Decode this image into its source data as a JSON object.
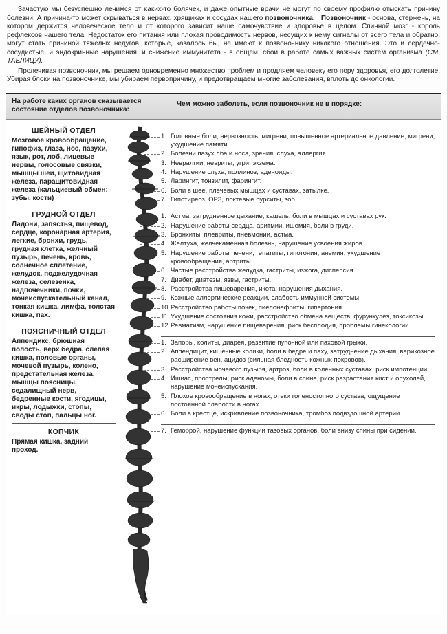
{
  "intro": {
    "pozvonochnik_word": "позвоночника.",
    "pozvonochnik_head": "Позвоночник",
    "p1a": "Зачастую мы безуспешно лечимся от каких-то болячек, и даже опытные врачи не могут по своему профилю отыскать причину болезни. А причина-то может скрываться в нервах, хрящиках и сосудах нашего ",
    "p1b": " - основа, стержень, на котором держится человеческое тело и от которого зависит наше самочувствие и здоровье в целом. Спинной мозг - король рефлексов нашего тела. Недостаток его питания или плохая проводимость нервов, несущих к нему сигналы от всего тела и обратно, могут стать причиной тяжелых недугов, которые, казалось бы, не имеют к позвоночнику никакого отношения. Это и сердечно-сосудистые, и эндокринные нарушения, и снижение иммунитета - в общем, сбои в работе самых важных систем организма ",
    "see_table": "(СМ. ТАБЛИЦУ).",
    "p2": "Пролечивая позвоночник, мы решаем одновременно множество проблем и продляем человеку его пору здоровья, его долголетие. Убирая блоки на позвоночнике, мы убираем первопричину, и предотвращаем многие заболевания, вплоть до онкологии."
  },
  "headers": {
    "left": "На работе каких органов сказывается состояние отделов позвоночника:",
    "right": "Чем можно заболеть, если позвоночник не в порядке:"
  },
  "sections": [
    {
      "title": "ШЕЙНЫЙ ОТДЕЛ",
      "left": "Мозговое кровообращение, гипофиз, глаза, нос, пазухи, язык, рот, лоб, лицевые нервы, голосовые связки, мышцы шеи, щитовидная железа, паращитовидная железа (кальциевый обмен: зубы, кости)",
      "right": [
        "Головные боли, нервозность, мигрени, повышенное артериальное давление, мигрени, ухудшение памяти.",
        "Болезни пазух лба и носа, зрения, слуха, аллергия.",
        "Невралгии, невриты, угри, экзема.",
        "Нарушение слуха, поллиноз, аденоиды.",
        "Ларингит, тонзилит, фарингит.",
        "Боли в шее, плечевых мышцах и суставах, затылке.",
        "Гипотиреоз, ОРЗ, локтевые бурситы, зоб."
      ]
    },
    {
      "title": "ГРУДНОЙ ОТДЕЛ",
      "left": "Ладони, запястья, пищевод, сердце, коронарная артерия, легкие, бронхи, грудь, грудная клетка, желчный пузырь, печень, кровь, солнечное сплетение, желудок, поджелудочная железа, селезенка, надпочечники, почки, мочеиспускательный канал, тонкая кишка, лимфа, толстая кишка, пах.",
      "right": [
        "Астма, затрудненное дыхание, кашель, боли в мышцах и суставах рук.",
        "Нарушение работы сердца, аритмии, ишемия, боли в груди.",
        "Бронхиты, плевриты, пневмонии, астма.",
        "Желтуха, желчекаменная болезнь, нарушение усвоения жиров.",
        "Нарушение работы печени, гепатиты, гипотония, анемия, ухудшение кровообращения, артриты.",
        "Частые расстройства желудка, гастриты, изжога, диспепсия.",
        "Диабет, диатезы, язвы, гастриты.",
        "Расстройства пищеварения, икота, нарушения дыхания.",
        "Кожные аллергические реакции, слабость иммунной системы.",
        "Расстройство работы почек, пиелонефриты, гипертония.",
        "Ухудшение состояния кожи, расстройство обмена веществ, фурункулез, токсикозы.",
        "Ревматизм, нарушение пищеварения, риск бесплодия, проблемы гинекологии."
      ]
    },
    {
      "title": "ПОЯСНИЧНЫЙ ОТДЕЛ",
      "left": "Аппендикс, брюшная полость, верх бедра, слепая кишка, половые органы, мочевой пузырь, колено, предстательная железа, мышцы поясницы, седалищный нерв, бедренные кости, ягодицы, икры, лодыжки, стопы, своды стоп, пальцы ног.",
      "right": [
        "Запоры, колиты, диарея, развитие пупочной или паховой грыжи.",
        "Аппендицит, кишечные колики, боли в бедре и паху, затруднение дыхания, варикозное расширение вен, ацидоз (сильная бледность кожных покровов).",
        "Расстройства мочевого пузыря, артроз, боли в коленных суставах, риск импотенции.",
        "Ишиас, прострелы, риск аденомы, боли в спине, риск разрастания кист и опухолей, нарушение мочеиспускания.",
        "Плохое кровообращение в ногах, отеки голеностопного сустава, ощущение постоянной слабости в ногах.",
        "Боли в крестце, искривление позвоночника, тромбоз подвздошной артерии."
      ]
    },
    {
      "title": "КОПЧИК",
      "left": "Прямая кишка, задний проход.",
      "right_start": 7,
      "right": [
        "Геморрой, нарушение функции тазовых органов, боли внизу спины при сидении."
      ]
    }
  ]
}
